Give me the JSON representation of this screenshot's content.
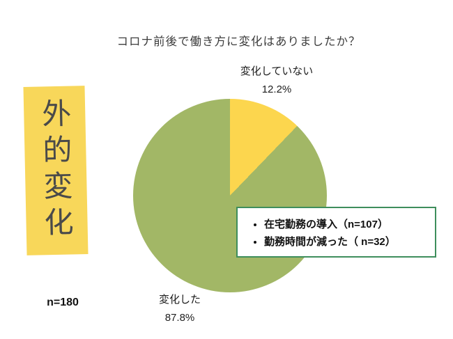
{
  "title": "コロナ前後で働き方に変化はありましたか？",
  "banner": {
    "label": "外的変化",
    "background": "#f8d75a"
  },
  "sample_size": "n=180",
  "chart_data": {
    "type": "pie",
    "title": "コロナ前後で働き方に変化はありましたか？",
    "labels": [
      "変化していない",
      "変化した"
    ],
    "values": [
      12.2,
      87.8
    ],
    "value_labels": [
      "12.2%",
      "87.8%"
    ],
    "colors": [
      "#fcd64e",
      "#a2b766"
    ],
    "start_angle_deg": 0,
    "direction": "clockwise",
    "total_n": 180,
    "legend_position": "none"
  },
  "pie_labels": {
    "no_change": {
      "label": "変化していない",
      "value": "12.2%"
    },
    "changed": {
      "label": "変化した",
      "value": "87.8%"
    }
  },
  "annotation_box": {
    "border_color": "#3e8e5c",
    "items": [
      "在宅勤務の導入（n=107）",
      "勤務時間が減った（ n=32）"
    ]
  }
}
